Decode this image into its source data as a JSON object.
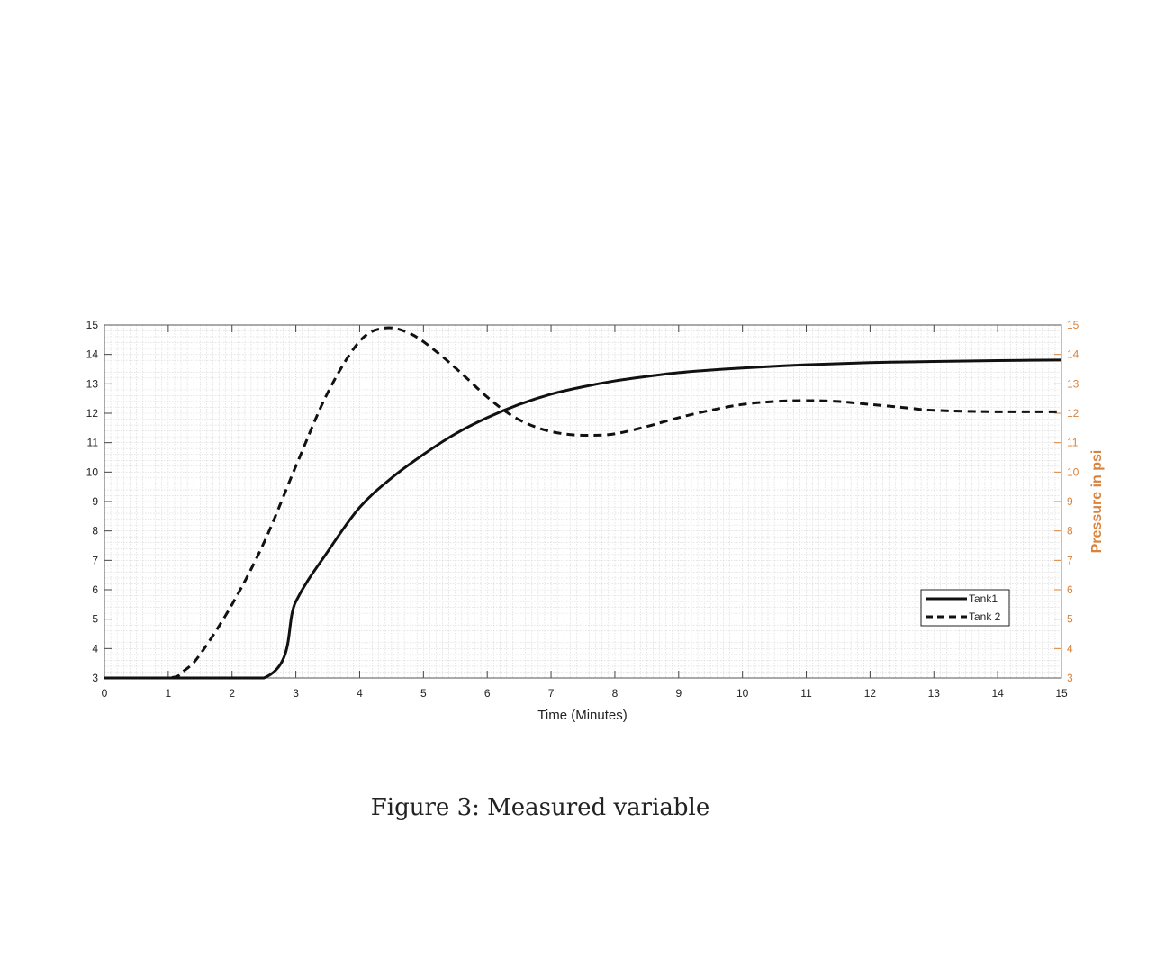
{
  "caption": "Figure 3: Measured variable",
  "chart_data": {
    "type": "line",
    "xlabel": "Time (Minutes)",
    "ylabel": "",
    "ylabel_right": "Pressure in psi",
    "xlim": [
      0,
      15
    ],
    "ylim": [
      3,
      15
    ],
    "ylim_right": [
      3,
      15
    ],
    "x_ticks": [
      "0",
      "1",
      "2",
      "3",
      "4",
      "5",
      "6",
      "7",
      "8",
      "9",
      "10",
      "11",
      "12",
      "13",
      "14",
      "15"
    ],
    "y_ticks": [
      "3",
      "4",
      "5",
      "6",
      "7",
      "8",
      "9",
      "10",
      "11",
      "12",
      "13",
      "14",
      "15"
    ],
    "y_ticks_right": [
      "3",
      "4",
      "5",
      "6",
      "7",
      "8",
      "9",
      "10",
      "11",
      "12",
      "13",
      "14",
      "15"
    ],
    "grid": "minor",
    "legend_position": "lower-right",
    "colors": {
      "line": "#111111",
      "right_axis": "#d9823b",
      "grid": "#d6d6d6"
    },
    "series": [
      {
        "name": "Tank1",
        "style": "solid",
        "x": [
          0,
          2.5,
          3,
          3.5,
          4,
          4.5,
          5,
          5.5,
          6,
          6.5,
          7,
          7.5,
          8,
          8.5,
          9,
          9.5,
          10,
          11,
          12,
          13,
          14,
          15
        ],
        "y": [
          3,
          3,
          5.6,
          7.3,
          8.8,
          9.8,
          10.6,
          11.3,
          11.85,
          12.3,
          12.65,
          12.9,
          13.1,
          13.25,
          13.38,
          13.47,
          13.54,
          13.65,
          13.72,
          13.76,
          13.79,
          13.81
        ]
      },
      {
        "name": "Tank 2",
        "style": "dashed",
        "x": [
          0,
          1,
          1.25,
          1.5,
          2,
          2.5,
          3,
          3.5,
          4,
          4.4,
          4.8,
          5.2,
          5.6,
          6,
          6.4,
          6.8,
          7.2,
          7.6,
          8,
          8.5,
          9,
          9.5,
          10,
          10.5,
          11,
          11.5,
          12,
          12.5,
          13,
          14,
          15
        ],
        "y": [
          3,
          3,
          3.25,
          3.8,
          5.5,
          7.6,
          10.2,
          12.7,
          14.45,
          14.9,
          14.7,
          14.1,
          13.35,
          12.55,
          11.9,
          11.5,
          11.3,
          11.25,
          11.3,
          11.55,
          11.85,
          12.1,
          12.3,
          12.4,
          12.43,
          12.4,
          12.3,
          12.2,
          12.1,
          12.05,
          12.05
        ]
      }
    ]
  }
}
